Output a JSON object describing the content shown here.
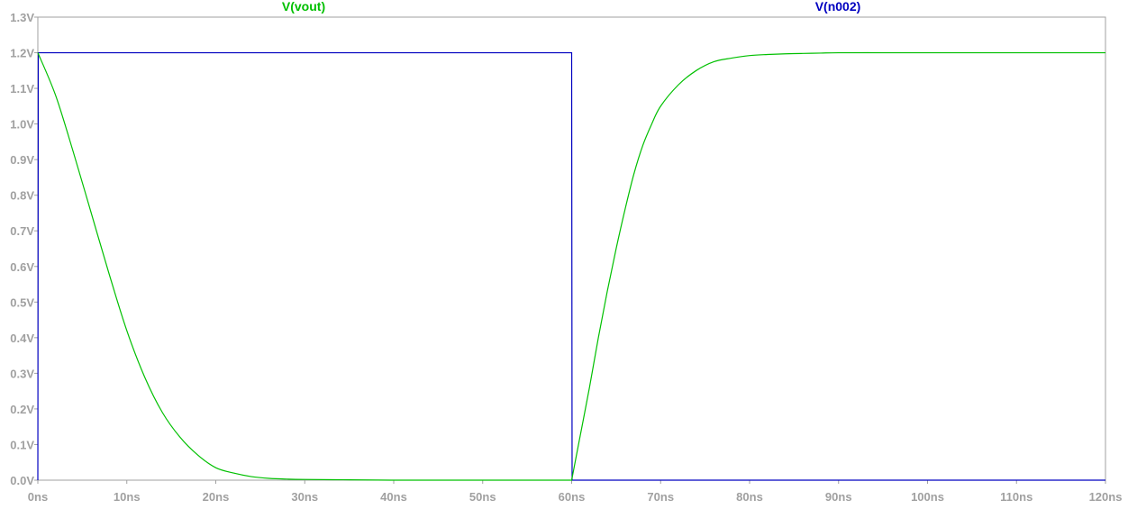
{
  "chart_data": {
    "type": "line",
    "grid": false,
    "legend_placement": "top-center",
    "xlim": [
      0,
      120
    ],
    "ylim": [
      0,
      1.3
    ],
    "x_unit": "ns",
    "y_unit": "V",
    "x_ticks": [
      "0ns",
      "10ns",
      "20ns",
      "30ns",
      "40ns",
      "50ns",
      "60ns",
      "70ns",
      "80ns",
      "90ns",
      "100ns",
      "110ns",
      "120ns"
    ],
    "y_ticks": [
      "0.0V",
      "0.1V",
      "0.2V",
      "0.3V",
      "0.4V",
      "0.5V",
      "0.6V",
      "0.7V",
      "0.8V",
      "0.9V",
      "1.0V",
      "1.1V",
      "1.2V",
      "1.3V"
    ],
    "series": [
      {
        "name": "V(vout)",
        "color": "#00c000",
        "x": [
          0,
          2,
          4,
          6,
          8,
          10,
          12,
          14,
          16,
          18,
          20,
          22,
          24,
          26,
          28,
          30,
          35,
          40,
          45,
          50,
          55,
          60,
          61,
          62,
          63,
          64,
          65,
          66,
          67,
          68,
          69,
          70,
          72,
          74,
          76,
          78,
          80,
          82,
          84,
          86,
          88,
          90,
          95,
          100,
          105,
          110,
          115,
          120
        ],
        "y": [
          1.2,
          1.08,
          0.92,
          0.75,
          0.58,
          0.42,
          0.29,
          0.19,
          0.12,
          0.07,
          0.035,
          0.02,
          0.01,
          0.005,
          0.003,
          0.002,
          0.001,
          0.0,
          0.0,
          0.0,
          0.0,
          0.0,
          0.13,
          0.26,
          0.4,
          0.53,
          0.65,
          0.76,
          0.86,
          0.94,
          1.0,
          1.05,
          1.11,
          1.15,
          1.175,
          1.185,
          1.192,
          1.195,
          1.197,
          1.198,
          1.199,
          1.2,
          1.2,
          1.2,
          1.2,
          1.2,
          1.2,
          1.2
        ]
      },
      {
        "name": "V(n002)",
        "color": "#0000c0",
        "x": [
          0,
          0.05,
          60,
          60.05,
          120
        ],
        "y": [
          0,
          1.2,
          1.2,
          0,
          0
        ]
      }
    ]
  }
}
